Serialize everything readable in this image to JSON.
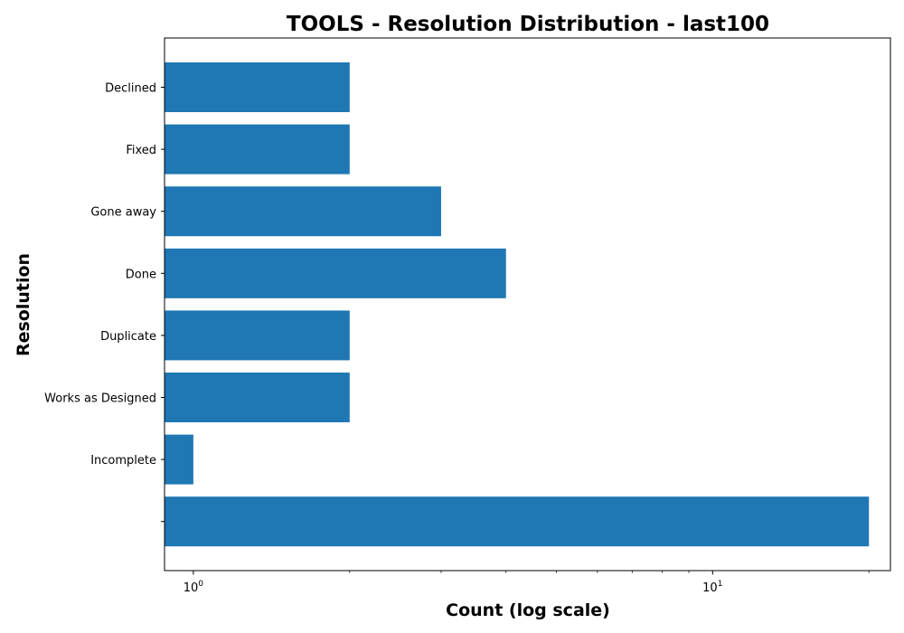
{
  "chart_data": {
    "type": "bar",
    "orientation": "horizontal",
    "title": "TOOLS - Resolution Distribution - last100",
    "xlabel": "Count (log scale)",
    "ylabel": "Resolution",
    "xscale": "log",
    "xlim": [
      0.88,
      22
    ],
    "x_ticks": [
      {
        "value": 1,
        "base": "10",
        "exp": "0"
      },
      {
        "value": 10,
        "base": "10",
        "exp": "1"
      }
    ],
    "categories": [
      "Declined",
      "Fixed",
      "Gone away",
      "Done",
      "Duplicate",
      "Works as Designed",
      "Incomplete",
      ""
    ],
    "values": [
      2,
      2,
      3,
      4,
      2,
      2,
      1,
      20
    ],
    "bar_color": "#1f77b4",
    "grid": false,
    "legend": "none"
  }
}
